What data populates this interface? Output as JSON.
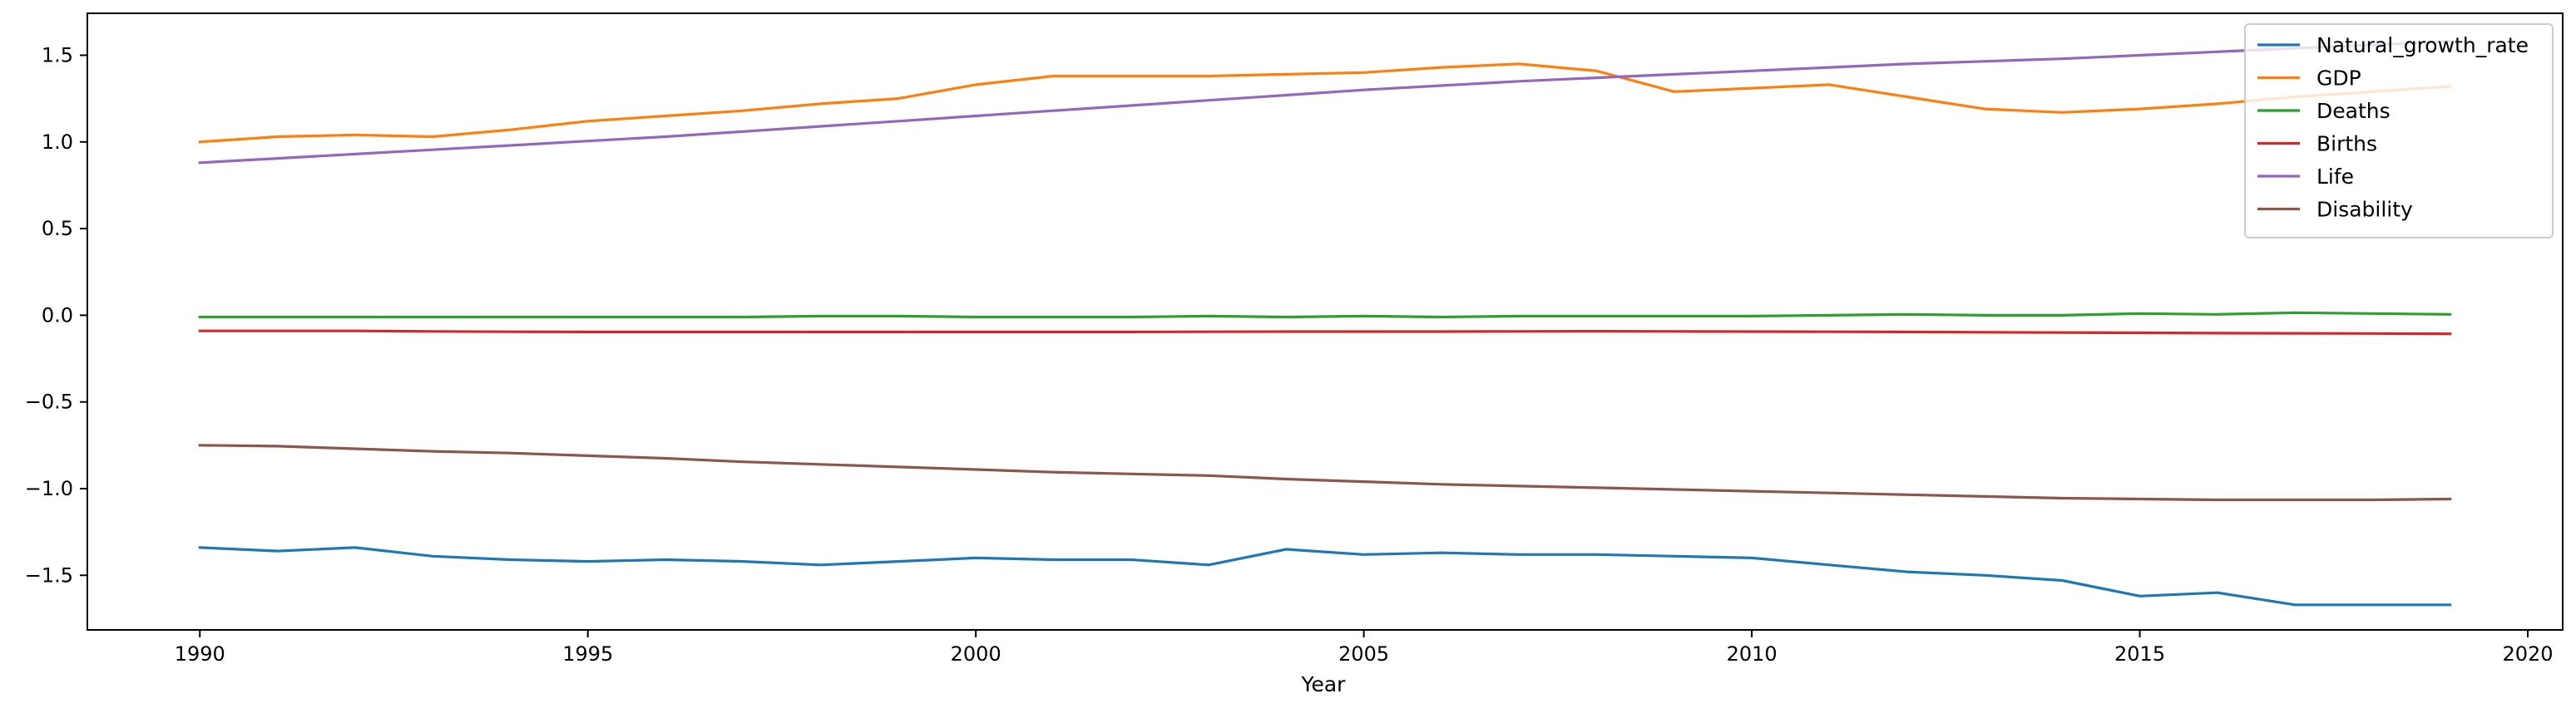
{
  "chart_data": {
    "type": "line",
    "title": "",
    "xlabel": "Year",
    "ylabel": "",
    "xlim": [
      1988.55,
      2020.45
    ],
    "ylim": [
      -1.815,
      1.742
    ],
    "xticks": [
      1990,
      1995,
      2000,
      2005,
      2010,
      2015,
      2020
    ],
    "yticks": [
      -1.5,
      -1.0,
      -0.5,
      0.0,
      0.5,
      1.0,
      1.5
    ],
    "grid": false,
    "legend_position": "top-right",
    "x": [
      1990,
      1991,
      1992,
      1993,
      1994,
      1995,
      1996,
      1997,
      1998,
      1999,
      2000,
      2001,
      2002,
      2003,
      2004,
      2005,
      2006,
      2007,
      2008,
      2009,
      2010,
      2011,
      2012,
      2013,
      2014,
      2015,
      2016,
      2017,
      2018,
      2019
    ],
    "series": [
      {
        "name": "Natural_growth_rate",
        "color": "#1f77b4",
        "values": [
          -1.34,
          -1.36,
          -1.34,
          -1.39,
          -1.41,
          -1.42,
          -1.41,
          -1.42,
          -1.44,
          -1.42,
          -1.4,
          -1.41,
          -1.41,
          -1.44,
          -1.35,
          -1.38,
          -1.37,
          -1.38,
          -1.38,
          -1.39,
          -1.4,
          -1.44,
          -1.48,
          -1.5,
          -1.53,
          -1.62,
          -1.6,
          -1.67,
          -1.67,
          -1.67
        ]
      },
      {
        "name": "GDP",
        "color": "#ff7f0e",
        "values": [
          1.0,
          1.03,
          1.04,
          1.03,
          1.07,
          1.12,
          1.15,
          1.18,
          1.22,
          1.25,
          1.33,
          1.38,
          1.38,
          1.38,
          1.39,
          1.4,
          1.43,
          1.45,
          1.41,
          1.29,
          1.31,
          1.33,
          1.26,
          1.19,
          1.17,
          1.19,
          1.22,
          1.26,
          1.29,
          1.32
        ]
      },
      {
        "name": "Deaths",
        "color": "#2ca02c",
        "values": [
          -0.01,
          -0.01,
          -0.01,
          -0.01,
          -0.01,
          -0.01,
          -0.01,
          -0.01,
          -0.005,
          -0.005,
          -0.01,
          -0.01,
          -0.01,
          -0.005,
          -0.01,
          -0.005,
          -0.01,
          -0.005,
          -0.005,
          -0.005,
          -0.005,
          0.0,
          0.005,
          0.0,
          0.0,
          0.01,
          0.005,
          0.015,
          0.01,
          0.005
        ]
      },
      {
        "name": "Births",
        "color": "#d62728",
        "values": [
          -0.09,
          -0.09,
          -0.09,
          -0.093,
          -0.095,
          -0.096,
          -0.096,
          -0.096,
          -0.096,
          -0.096,
          -0.096,
          -0.096,
          -0.096,
          -0.095,
          -0.094,
          -0.094,
          -0.094,
          -0.093,
          -0.092,
          -0.093,
          -0.094,
          -0.095,
          -0.096,
          -0.098,
          -0.1,
          -0.101,
          -0.103,
          -0.104,
          -0.105,
          -0.107
        ]
      },
      {
        "name": "Life",
        "color": "#9467bd",
        "values": [
          0.88,
          0.905,
          0.93,
          0.955,
          0.98,
          1.005,
          1.03,
          1.06,
          1.09,
          1.12,
          1.15,
          1.18,
          1.21,
          1.24,
          1.27,
          1.3,
          1.325,
          1.35,
          1.37,
          1.39,
          1.41,
          1.43,
          1.45,
          1.465,
          1.48,
          1.5,
          1.52,
          1.54,
          1.56,
          1.58
        ]
      },
      {
        "name": "Disability",
        "color": "#8c564b",
        "values": [
          -0.75,
          -0.755,
          -0.77,
          -0.785,
          -0.795,
          -0.81,
          -0.825,
          -0.845,
          -0.86,
          -0.875,
          -0.89,
          -0.905,
          -0.915,
          -0.925,
          -0.945,
          -0.96,
          -0.975,
          -0.985,
          -0.995,
          -1.005,
          -1.015,
          -1.025,
          -1.035,
          -1.045,
          -1.055,
          -1.06,
          -1.065,
          -1.065,
          -1.065,
          -1.06
        ]
      }
    ]
  }
}
